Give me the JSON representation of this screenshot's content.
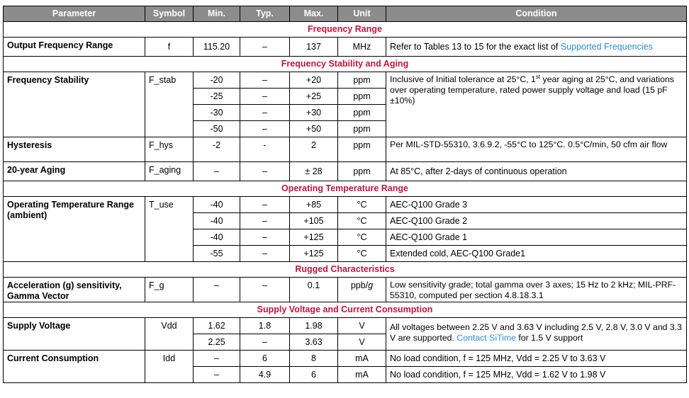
{
  "header": {
    "parameter": "Parameter",
    "symbol": "Symbol",
    "min": "Min.",
    "typ": "Typ.",
    "max": "Max.",
    "unit": "Unit",
    "condition": "Condition"
  },
  "sections": {
    "freq_range": "Frequency Range",
    "freq_stab": "Frequency Stability and Aging",
    "op_temp": "Operating Temperature Range",
    "rugged": "Rugged Characteristics",
    "supply": "Supply Voltage and Current Consumption"
  },
  "rows": {
    "ofr": {
      "param": "Output Frequency Range",
      "sym": "f",
      "min": "115.20",
      "typ": "–",
      "max": "137",
      "unit": "MHz",
      "cond_pre": "Refer to Tables 13 to 15 for the exact list of ",
      "cond_link": "Supported Frequencies"
    },
    "fstab": {
      "param": "Frequency Stability",
      "sym": "F_stab",
      "cond_a": "Inclusive of Initial tolerance at 25°C, 1",
      "cond_sup": "st",
      "cond_b": " year aging at 25°C, and variations over operating temperature, rated power supply voltage and load (15 pF ±10%)",
      "r": [
        {
          "min": "-20",
          "typ": "–",
          "max": "+20",
          "unit": "ppm"
        },
        {
          "min": "-25",
          "typ": "–",
          "max": "+25",
          "unit": "ppm"
        },
        {
          "min": "-30",
          "typ": "–",
          "max": "+30",
          "unit": "ppm"
        },
        {
          "min": "-50",
          "typ": "–",
          "max": "+50",
          "unit": "ppm"
        }
      ]
    },
    "hyst": {
      "param": "Hysteresis",
      "sym": "F_hys",
      "min": "-2",
      "typ": "-",
      "max": "2",
      "unit": "ppm",
      "cond": "Per MIL-STD-55310, 3.6.9.2, -55°C to 125°C. 0.5°C/min, 50 cfm air flow"
    },
    "aging": {
      "param": "20-year Aging",
      "sym": "F_aging",
      "min": "–",
      "typ": "–",
      "max": "± 28",
      "unit": "ppm",
      "cond": "At 85°C, after 2-days of continuous operation"
    },
    "optemp": {
      "param": "Operating Temperature Range (ambient)",
      "sym": "T_use",
      "r": [
        {
          "min": "-40",
          "typ": "–",
          "max": "+85",
          "unit": "°C",
          "cond": "AEC-Q100 Grade 3"
        },
        {
          "min": "-40",
          "typ": "–",
          "max": "+105",
          "unit": "°C",
          "cond": "AEC-Q100 Grade 2"
        },
        {
          "min": "-40",
          "typ": "–",
          "max": "+125",
          "unit": "°C",
          "cond": "AEC-Q100 Grade 1"
        },
        {
          "min": "-55",
          "typ": "–",
          "max": "+125",
          "unit": "°C",
          "cond": "Extended cold, AEC-Q100 Grade1"
        }
      ]
    },
    "accel": {
      "param": "Acceleration (g) sensitivity, Gamma Vector",
      "sym": "F_g",
      "min": "–",
      "typ": "–",
      "max": "0.1",
      "unit": "ppb/",
      "unit_i": "g",
      "cond": "Low sensitivity grade; total gamma over 3 axes; 15 Hz to 2 kHz; MIL-PRF-55310, computed per section 4.8.18.3.1"
    },
    "vdd": {
      "param": "Supply Voltage",
      "sym": "Vdd",
      "r": [
        {
          "min": "1.62",
          "typ": "1.8",
          "max": "1.98",
          "unit": "V"
        },
        {
          "min": "2.25",
          "typ": "–",
          "max": "3.63",
          "unit": "V"
        }
      ],
      "cond_pre": "All voltages between 2.25 V and 3.63 V including 2.5 V, 2.8 V, 3.0 V and 3.3 V are supported. ",
      "cond_link": "Contact SiTime",
      "cond_post": " for 1.5 V support"
    },
    "idd": {
      "param": "Current Consumption",
      "sym": "Idd",
      "r": [
        {
          "min": "–",
          "typ": "6",
          "max": "8",
          "unit": "mA",
          "cond": "No load condition, f = 125 MHz, Vdd = 2.25 V to 3.63 V"
        },
        {
          "min": "–",
          "typ": "4.9",
          "max": "6",
          "unit": "mA",
          "cond": "No load condition, f = 125 MHz, Vdd = 1.62 V to 1.98 V"
        }
      ]
    }
  }
}
